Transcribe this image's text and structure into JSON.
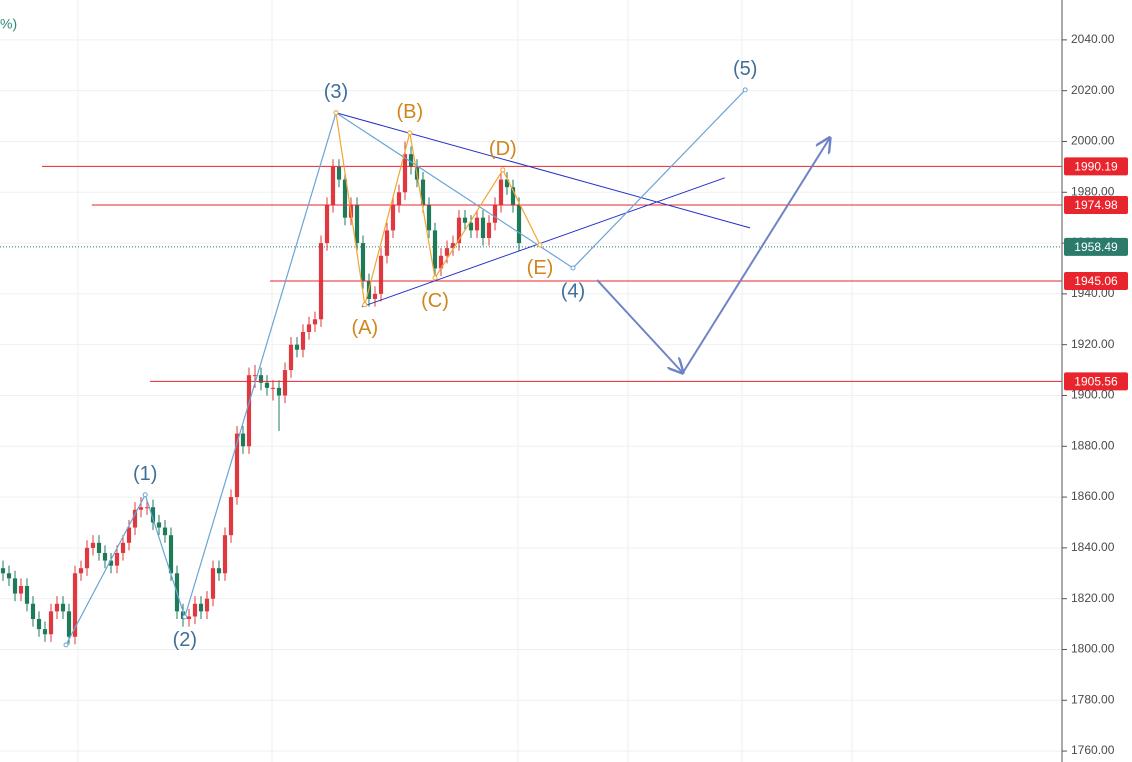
{
  "chart_data": {
    "type": "candlestick",
    "legend_fragment": "%)",
    "up_color": "#e0383f",
    "down_color": "#1f7a5a",
    "xlim": [
      -0.5,
      176.5
    ],
    "ylim": [
      1755.7,
      2055.7
    ],
    "yticks": [
      {
        "value": 1760,
        "label": "1760.00"
      },
      {
        "value": 1780,
        "label": "1780.00"
      },
      {
        "value": 1800,
        "label": "1800.00"
      },
      {
        "value": 1820,
        "label": "1820.00"
      },
      {
        "value": 1840,
        "label": "1840.00"
      },
      {
        "value": 1860,
        "label": "1860.00"
      },
      {
        "value": 1880,
        "label": "1880.00"
      },
      {
        "value": 1900,
        "label": "1900.00"
      },
      {
        "value": 1920,
        "label": "1920.00"
      },
      {
        "value": 1940,
        "label": "1940.00"
      },
      {
        "value": 1960,
        "label": "1960.00"
      },
      {
        "value": 1980,
        "label": "1980.00"
      },
      {
        "value": 2000,
        "label": "2000.00"
      },
      {
        "value": 2020,
        "label": "2020.00"
      },
      {
        "value": 2040,
        "label": "2040.00"
      }
    ],
    "grid": true,
    "candles": [
      [
        1832,
        1835,
        1827,
        1830
      ],
      [
        1830,
        1833,
        1825,
        1828
      ],
      [
        1828,
        1831,
        1819,
        1822
      ],
      [
        1822,
        1828,
        1819,
        1825
      ],
      [
        1825,
        1828,
        1815,
        1818
      ],
      [
        1818,
        1821,
        1809,
        1812
      ],
      [
        1812,
        1815,
        1805,
        1808
      ],
      [
        1808,
        1811,
        1803,
        1806
      ],
      [
        1806,
        1818,
        1803,
        1815
      ],
      [
        1815,
        1821,
        1812,
        1818
      ],
      [
        1818,
        1821,
        1812,
        1815
      ],
      [
        1815,
        1818,
        1802,
        1805
      ],
      [
        1805,
        1833,
        1802,
        1830
      ],
      [
        1830,
        1835,
        1827,
        1832
      ],
      [
        1832,
        1843,
        1829,
        1840
      ],
      [
        1840,
        1845,
        1837,
        1842
      ],
      [
        1842,
        1845,
        1835,
        1838
      ],
      [
        1838,
        1841,
        1832,
        1835
      ],
      [
        1835,
        1838,
        1830,
        1833
      ],
      [
        1833,
        1841,
        1830,
        1838
      ],
      [
        1838,
        1845,
        1835,
        1842
      ],
      [
        1842,
        1851,
        1839,
        1848
      ],
      [
        1848,
        1858,
        1845,
        1855
      ],
      [
        1855,
        1860,
        1852,
        1856
      ],
      [
        1856,
        1859,
        1853,
        1856
      ],
      [
        1856,
        1859,
        1847,
        1850
      ],
      [
        1850,
        1853,
        1845,
        1848
      ],
      [
        1848,
        1851,
        1842,
        1845
      ],
      [
        1845,
        1848,
        1827,
        1830
      ],
      [
        1830,
        1833,
        1812,
        1815
      ],
      [
        1815,
        1818,
        1809,
        1812
      ],
      [
        1812,
        1816,
        1809,
        1813
      ],
      [
        1813,
        1821,
        1810,
        1818
      ],
      [
        1818,
        1821,
        1812,
        1815
      ],
      [
        1815,
        1823,
        1812,
        1820
      ],
      [
        1820,
        1835,
        1817,
        1832
      ],
      [
        1832,
        1835,
        1827,
        1830
      ],
      [
        1830,
        1848,
        1827,
        1845
      ],
      [
        1845,
        1863,
        1842,
        1860
      ],
      [
        1860,
        1888,
        1857,
        1885
      ],
      [
        1885,
        1888,
        1877,
        1880
      ],
      [
        1880,
        1911,
        1877,
        1908
      ],
      [
        1908,
        1912,
        1903,
        1908
      ],
      [
        1908,
        1911,
        1902,
        1905
      ],
      [
        1905,
        1908,
        1900,
        1903
      ],
      [
        1903,
        1906,
        1898,
        1903
      ],
      [
        1903,
        1906,
        1886,
        1900
      ],
      [
        1900,
        1913,
        1897,
        1910
      ],
      [
        1910,
        1923,
        1907,
        1920
      ],
      [
        1920,
        1923,
        1915,
        1918
      ],
      [
        1918,
        1928,
        1915,
        1925
      ],
      [
        1925,
        1931,
        1922,
        1928
      ],
      [
        1928,
        1933,
        1925,
        1930
      ],
      [
        1930,
        1963,
        1927,
        1960
      ],
      [
        1960,
        1978,
        1957,
        1975
      ],
      [
        1975,
        1993,
        1972,
        1990
      ],
      [
        1990,
        1993,
        1982,
        1985
      ],
      [
        1985,
        1988,
        1967,
        1970
      ],
      [
        1970,
        1978,
        1967,
        1975
      ],
      [
        1975,
        1978,
        1957,
        1960
      ],
      [
        1960,
        1963,
        1942,
        1945
      ],
      [
        1945,
        1948,
        1935,
        1938
      ],
      [
        1938,
        1943,
        1935,
        1940
      ],
      [
        1940,
        1958,
        1937,
        1955
      ],
      [
        1955,
        1968,
        1952,
        1965
      ],
      [
        1965,
        1978,
        1962,
        1975
      ],
      [
        1975,
        1983,
        1972,
        1980
      ],
      [
        1980,
        2000,
        1977,
        1995
      ],
      [
        1995,
        1998,
        1987,
        1990
      ],
      [
        1990,
        1993,
        1982,
        1985
      ],
      [
        1985,
        1988,
        1972,
        1975
      ],
      [
        1975,
        1978,
        1962,
        1965
      ],
      [
        1965,
        1968,
        1947,
        1950
      ],
      [
        1950,
        1958,
        1947,
        1955
      ],
      [
        1955,
        1961,
        1952,
        1958
      ],
      [
        1958,
        1963,
        1955,
        1960
      ],
      [
        1960,
        1973,
        1957,
        1970
      ],
      [
        1970,
        1973,
        1965,
        1968
      ],
      [
        1968,
        1971,
        1962,
        1965
      ],
      [
        1965,
        1973,
        1962,
        1970
      ],
      [
        1970,
        1973,
        1959,
        1962
      ],
      [
        1962,
        1971,
        1959,
        1968
      ],
      [
        1968,
        1978,
        1965,
        1975
      ],
      [
        1975,
        1988,
        1972,
        1985
      ],
      [
        1985,
        1988,
        1979,
        1982
      ],
      [
        1982,
        1985,
        1972,
        1975
      ],
      [
        1975,
        1978,
        1957,
        1960
      ]
    ],
    "last_price": 1958.49,
    "last_price_color": "#2b7a6a",
    "levels": [
      {
        "value": 1990.19,
        "x_start": 6.5
      },
      {
        "value": 1974.98,
        "x_start": 14.8
      },
      {
        "value": 1945.06,
        "x_start": 44.5
      },
      {
        "value": 1905.56,
        "x_start": 24.5
      }
    ],
    "level_color": "#e8242d",
    "waves": [
      {
        "color": "#6aa5d6",
        "label_color": "#3f6f96",
        "x": [
          10.5,
          23.7,
          30.3,
          55.5,
          95,
          123.7
        ],
        "y": [
          1801.8,
          1860.9,
          1812.8,
          2011.3,
          1950.2,
          2020.3
        ],
        "labels": [
          null,
          "(1)",
          "(2)",
          "(3)",
          "(4)",
          "(5)"
        ]
      },
      {
        "color": "#f2a532",
        "label_color": "#d0861c",
        "x": [
          55.5,
          60.3,
          67.8,
          72,
          83.3,
          89.5
        ],
        "y": [
          2011.3,
          1935.7,
          2003.4,
          1946.3,
          1988.8,
          1959.3
        ],
        "labels": [
          null,
          "(A)",
          "(B)",
          "(C)",
          "(D)",
          "(E)"
        ]
      }
    ],
    "trendlines": [
      {
        "x": [
          55.5,
          124.5
        ],
        "y": [
          2011.3,
          1966.0
        ]
      },
      {
        "x": [
          59.8,
          120.3
        ],
        "y": [
          1934.9,
          1985.7
        ]
      }
    ],
    "trendline_color": "#2330c8",
    "arrows": [
      {
        "x": [
          99,
          113.3
        ],
        "y": [
          1945.5,
          1908.9
        ]
      },
      {
        "x": [
          113.3,
          137.8
        ],
        "y": [
          1908.9,
          2001.4
        ]
      }
    ],
    "arrow_color": "#6f84c6"
  }
}
